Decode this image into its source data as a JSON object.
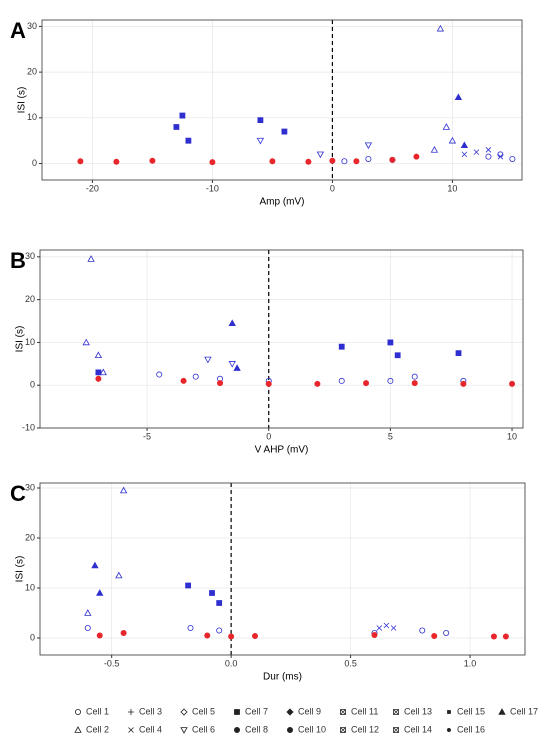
{
  "chart_data": [
    {
      "type": "scatter",
      "label": "A",
      "xlabel": "Amp (mV)",
      "ylabel": "ISI (s)",
      "xlim": [
        -24.2,
        15.8
      ],
      "ylim": [
        -3.6,
        31.4
      ],
      "xticks": [
        -20,
        -10,
        0,
        10
      ],
      "yticks": [
        0,
        10,
        20,
        30
      ],
      "vline": 0,
      "grid": true,
      "series": [
        {
          "name": "Cell 2",
          "shape": "triangle-open",
          "color": "#2f2fd0",
          "x": [
            9,
            9.5,
            8.5,
            10
          ],
          "values": [
            29.5,
            8,
            3,
            5
          ]
        },
        {
          "name": "Cell 17",
          "shape": "triangle",
          "color": "#2f2fd0",
          "x": [
            10.5,
            11
          ],
          "values": [
            14.5,
            4
          ]
        },
        {
          "name": "Cell 7",
          "shape": "square",
          "color": "#2f2fd0",
          "x": [
            -12.5,
            -13,
            -12,
            -6,
            -4
          ],
          "values": [
            10.5,
            8,
            5,
            9.5,
            7
          ]
        },
        {
          "name": "Cell 1",
          "shape": "circle-open",
          "color": "#2f2fd0",
          "x": [
            1,
            3,
            5,
            13,
            14,
            15
          ],
          "values": [
            0.5,
            1,
            0.8,
            1.5,
            2,
            1
          ]
        },
        {
          "name": "Cell 4",
          "shape": "x",
          "color": "#2f2fd0",
          "x": [
            11,
            12,
            13,
            14
          ],
          "values": [
            2,
            2.5,
            3,
            1.5
          ]
        },
        {
          "name": "Cell 6",
          "shape": "triangle-down-open",
          "color": "#2f2fd0",
          "x": [
            -6,
            -1,
            3
          ],
          "values": [
            5,
            2,
            4
          ]
        },
        {
          "name": "Cell 8",
          "shape": "circle",
          "color": "#e8262b",
          "x": [
            -21,
            -18,
            -15,
            -10,
            -5,
            -2,
            0,
            2,
            5,
            7
          ],
          "values": [
            0.5,
            0.4,
            0.6,
            0.3,
            0.5,
            0.4,
            0.6,
            0.5,
            0.8,
            1.5
          ]
        }
      ]
    },
    {
      "type": "scatter",
      "label": "B",
      "xlabel": "V AHP (mV)",
      "ylabel": "ISI (s)",
      "xlim": [
        -9.4,
        10.45
      ],
      "ylim": [
        -10,
        31.6
      ],
      "xticks": [
        -5,
        0,
        5,
        10
      ],
      "yticks": [
        -10,
        0,
        10,
        20,
        30
      ],
      "vline": 0,
      "grid": true,
      "series": [
        {
          "name": "Cell 2",
          "shape": "triangle-open",
          "color": "#2f2fd0",
          "x": [
            -7.3,
            -7.5,
            -7,
            -6.8
          ],
          "values": [
            29.5,
            10,
            7,
            3
          ]
        },
        {
          "name": "Cell 17",
          "shape": "triangle",
          "color": "#2f2fd0",
          "x": [
            -1.5,
            -1.3
          ],
          "values": [
            14.5,
            4
          ]
        },
        {
          "name": "Cell 7",
          "shape": "square",
          "color": "#2f2fd0",
          "x": [
            -7,
            3,
            5,
            5.3,
            7.8
          ],
          "values": [
            3,
            9,
            10,
            7,
            7.5
          ]
        },
        {
          "name": "Cell 1",
          "shape": "circle-open",
          "color": "#2f2fd0",
          "x": [
            -4.5,
            -3,
            -2,
            0,
            3,
            5,
            6,
            8
          ],
          "values": [
            2.5,
            2,
            1.5,
            1,
            1,
            1,
            2,
            1
          ]
        },
        {
          "name": "Cell 6",
          "shape": "triangle-down-open",
          "color": "#2f2fd0",
          "x": [
            -2.5,
            -1.5
          ],
          "values": [
            6,
            5
          ]
        },
        {
          "name": "Cell 8",
          "shape": "circle",
          "color": "#e8262b",
          "x": [
            -7,
            -3.5,
            -2,
            0,
            2,
            4,
            6,
            8,
            10
          ],
          "values": [
            1.5,
            1,
            0.5,
            0.3,
            0.3,
            0.5,
            0.5,
            0.3,
            0.3
          ]
        }
      ]
    },
    {
      "type": "scatter",
      "label": "C",
      "xlabel": "Dur (ms)",
      "ylabel": "ISI (s)",
      "xlim": [
        -0.8,
        1.23
      ],
      "ylim": [
        -3.4,
        31
      ],
      "xticks": [
        {
          "value": -0.5,
          "label": "-0.5"
        },
        {
          "value": 0,
          "label": "0.0"
        },
        {
          "value": 0.5,
          "label": "0.5"
        },
        {
          "value": 1,
          "label": "1.0"
        }
      ],
      "yticks": [
        0,
        10,
        20,
        30
      ],
      "vline": 0,
      "grid": true,
      "series": [
        {
          "name": "Cell 2",
          "shape": "triangle-open",
          "color": "#2f2fd0",
          "x": [
            -0.45,
            -0.47,
            -0.6
          ],
          "values": [
            29.5,
            12.5,
            5
          ]
        },
        {
          "name": "Cell 17",
          "shape": "triangle",
          "color": "#2f2fd0",
          "x": [
            -0.57,
            -0.55
          ],
          "values": [
            14.5,
            9
          ]
        },
        {
          "name": "Cell 7",
          "shape": "square",
          "color": "#2f2fd0",
          "x": [
            -0.18,
            -0.08,
            -0.05
          ],
          "values": [
            10.5,
            9,
            7
          ]
        },
        {
          "name": "Cell 1",
          "shape": "circle-open",
          "color": "#2f2fd0",
          "x": [
            -0.6,
            -0.17,
            -0.05,
            0.6,
            0.8,
            0.9
          ],
          "values": [
            2,
            2,
            1.5,
            1,
            1.5,
            1
          ]
        },
        {
          "name": "Cell 4",
          "shape": "x",
          "color": "#2f2fd0",
          "x": [
            0.62,
            0.65,
            0.68
          ],
          "values": [
            2,
            2.5,
            2
          ]
        },
        {
          "name": "Cell 8",
          "shape": "circle",
          "color": "#e8262b",
          "x": [
            -0.55,
            -0.45,
            -0.1,
            0,
            0.1,
            0.6,
            0.85,
            1.1,
            1.15
          ],
          "values": [
            0.5,
            1,
            0.5,
            0.3,
            0.4,
            0.6,
            0.4,
            0.3,
            0.3
          ]
        }
      ]
    }
  ],
  "legend": [
    {
      "name": "Cell 1",
      "shape": "circle-open"
    },
    {
      "name": "Cell 2",
      "shape": "triangle-open"
    },
    {
      "name": "Cell 3",
      "shape": "plus"
    },
    {
      "name": "Cell 4",
      "shape": "x"
    },
    {
      "name": "Cell 5",
      "shape": "diamond-open"
    },
    {
      "name": "Cell 6",
      "shape": "triangle-down-open"
    },
    {
      "name": "Cell 7",
      "shape": "square"
    },
    {
      "name": "Cell 8",
      "shape": "circle"
    },
    {
      "name": "Cell 9",
      "shape": "diamond"
    },
    {
      "name": "Cell 10",
      "shape": "circle"
    },
    {
      "name": "Cell 11",
      "shape": "square-x"
    },
    {
      "name": "Cell 12",
      "shape": "square-x"
    },
    {
      "name": "Cell 13",
      "shape": "square-x"
    },
    {
      "name": "Cell 14",
      "shape": "square-x"
    },
    {
      "name": "Cell 15",
      "shape": "square-small"
    },
    {
      "name": "Cell 16",
      "shape": "circle-small"
    },
    {
      "name": "Cell 17",
      "shape": "triangle"
    }
  ]
}
